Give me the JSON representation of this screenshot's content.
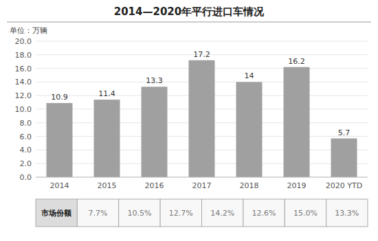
{
  "chart_data": {
    "type": "bar",
    "title": "2014—2020年平行进口车情况",
    "subtitle": "单位：万辆",
    "categories": [
      "2014",
      "2015",
      "2016",
      "2017",
      "2018",
      "2019",
      "2020 YTD"
    ],
    "values": [
      10.9,
      11.4,
      13.3,
      17.2,
      14.0,
      16.2,
      5.7
    ],
    "color": "#A0A0A0",
    "ylim": [
      0,
      20.0
    ],
    "yticks": [
      {
        "value": 0.0,
        "label": "0.0"
      },
      {
        "value": 2.0,
        "label": "2.0"
      },
      {
        "value": 4.0,
        "label": "4.0"
      },
      {
        "value": 6.0,
        "label": "6.0"
      },
      {
        "value": 8.0,
        "label": "8.0"
      },
      {
        "value": 10.0,
        "label": "10.0"
      },
      {
        "value": 12.0,
        "label": "12.0"
      },
      {
        "value": 14.0,
        "label": "14.0"
      },
      {
        "value": 16.0,
        "label": "16.0"
      },
      {
        "value": 18.0,
        "label": "18.0"
      },
      {
        "value": 20.0,
        "label": "20.0"
      }
    ],
    "grid": true,
    "data_labels": true,
    "table": {
      "header": "市场份额",
      "labels": [
        "7.7%",
        "10.5%",
        "12.7%",
        "14.2%",
        "12.6%",
        "15.0%",
        "13.3%"
      ]
    }
  }
}
